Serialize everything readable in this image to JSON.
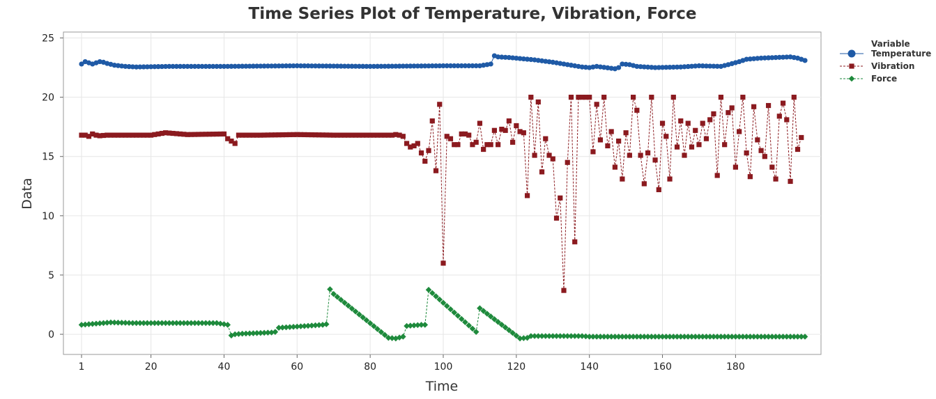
{
  "chart_data": {
    "type": "line",
    "title": "Time Series Plot of Temperature, Vibration, Force",
    "xlabel": "Time",
    "ylabel": "Data",
    "xlim": [
      1,
      199
    ],
    "ylim": [
      -1.7,
      25.5
    ],
    "xticks": [
      1,
      20,
      40,
      60,
      80,
      100,
      120,
      140,
      160,
      180
    ],
    "yticks": [
      0,
      5,
      10,
      15,
      20,
      25
    ],
    "grid": true,
    "legend": {
      "title": "Variable",
      "position": "top-right"
    },
    "series": [
      {
        "name": "Temperature",
        "color": "#1f5aa6",
        "marker": "circle",
        "line": "solid",
        "anchors": [
          [
            1,
            22.8
          ],
          [
            2,
            23.0
          ],
          [
            3,
            22.9
          ],
          [
            4,
            22.8
          ],
          [
            5,
            22.9
          ],
          [
            6,
            23.0
          ],
          [
            7,
            22.95
          ],
          [
            8,
            22.85
          ],
          [
            10,
            22.7
          ],
          [
            13,
            22.6
          ],
          [
            16,
            22.55
          ],
          [
            25,
            22.6
          ],
          [
            40,
            22.6
          ],
          [
            60,
            22.65
          ],
          [
            80,
            22.6
          ],
          [
            100,
            22.65
          ],
          [
            110,
            22.65
          ],
          [
            112,
            22.75
          ],
          [
            113,
            22.8
          ],
          [
            114,
            23.5
          ],
          [
            115,
            23.4
          ],
          [
            118,
            23.35
          ],
          [
            125,
            23.15
          ],
          [
            130,
            22.95
          ],
          [
            135,
            22.7
          ],
          [
            138,
            22.55
          ],
          [
            140,
            22.5
          ],
          [
            142,
            22.6
          ],
          [
            147,
            22.4
          ],
          [
            148,
            22.5
          ],
          [
            149,
            22.8
          ],
          [
            151,
            22.75
          ],
          [
            153,
            22.6
          ],
          [
            158,
            22.5
          ],
          [
            165,
            22.55
          ],
          [
            170,
            22.65
          ],
          [
            176,
            22.6
          ],
          [
            178,
            22.75
          ],
          [
            181,
            23.0
          ],
          [
            183,
            23.2
          ],
          [
            187,
            23.3
          ],
          [
            195,
            23.4
          ],
          [
            197,
            23.3
          ],
          [
            199,
            23.1
          ]
        ]
      },
      {
        "name": "Vibration",
        "color": "#8b1a1f",
        "marker": "square",
        "line": "dashed",
        "anchors": [
          [
            1,
            16.8
          ],
          [
            2,
            16.8
          ],
          [
            3,
            16.7
          ],
          [
            4,
            16.9
          ],
          [
            5,
            16.8
          ],
          [
            6,
            16.75
          ],
          [
            8,
            16.8
          ],
          [
            10,
            16.8
          ],
          [
            20,
            16.8
          ],
          [
            24,
            17.0
          ],
          [
            30,
            16.85
          ],
          [
            40,
            16.9
          ],
          [
            41,
            16.5
          ],
          [
            42,
            16.3
          ],
          [
            43,
            16.1
          ],
          [
            44,
            16.8
          ],
          [
            50,
            16.8
          ],
          [
            60,
            16.85
          ],
          [
            70,
            16.8
          ],
          [
            80,
            16.8
          ],
          [
            86,
            16.8
          ],
          [
            87,
            16.85
          ],
          [
            88,
            16.8
          ],
          [
            89,
            16.7
          ],
          [
            90,
            16.1
          ],
          [
            91,
            15.8
          ],
          [
            92,
            15.9
          ],
          [
            93,
            16.1
          ],
          [
            94,
            15.3
          ],
          [
            95,
            14.6
          ],
          [
            96,
            15.5
          ],
          [
            97,
            18.0
          ],
          [
            98,
            13.8
          ],
          [
            99,
            19.4
          ],
          [
            100,
            6.0
          ],
          [
            101,
            16.7
          ],
          [
            102,
            16.5
          ],
          [
            103,
            16.0
          ],
          [
            104,
            16.0
          ],
          [
            105,
            16.9
          ],
          [
            106,
            16.9
          ],
          [
            107,
            16.8
          ],
          [
            108,
            16.0
          ],
          [
            109,
            16.2
          ],
          [
            110,
            17.8
          ],
          [
            111,
            15.6
          ],
          [
            112,
            16.0
          ],
          [
            113,
            16.0
          ],
          [
            114,
            17.2
          ],
          [
            115,
            16.0
          ],
          [
            116,
            17.3
          ],
          [
            117,
            17.2
          ],
          [
            118,
            18.0
          ],
          [
            119,
            16.2
          ],
          [
            120,
            17.6
          ],
          [
            121,
            17.1
          ],
          [
            122,
            17.0
          ],
          [
            123,
            11.7
          ],
          [
            124,
            20.0
          ],
          [
            125,
            15.1
          ],
          [
            126,
            19.6
          ],
          [
            127,
            13.7
          ],
          [
            128,
            16.5
          ],
          [
            129,
            15.1
          ],
          [
            130,
            14.8
          ],
          [
            131,
            9.8
          ],
          [
            132,
            11.5
          ],
          [
            133,
            3.7
          ],
          [
            134,
            14.5
          ],
          [
            135,
            20.0
          ],
          [
            136,
            7.8
          ],
          [
            137,
            20.0
          ],
          [
            138,
            20.0
          ],
          [
            139,
            20.0
          ],
          [
            140,
            20.0
          ],
          [
            141,
            15.4
          ],
          [
            142,
            19.4
          ],
          [
            143,
            16.4
          ],
          [
            144,
            20.0
          ],
          [
            145,
            15.9
          ],
          [
            146,
            17.1
          ],
          [
            147,
            14.1
          ],
          [
            148,
            16.3
          ],
          [
            149,
            13.1
          ],
          [
            150,
            17.0
          ],
          [
            151,
            15.1
          ],
          [
            152,
            20.0
          ],
          [
            153,
            18.9
          ],
          [
            154,
            15.1
          ],
          [
            155,
            12.7
          ],
          [
            156,
            15.3
          ],
          [
            157,
            20.0
          ],
          [
            158,
            14.7
          ],
          [
            159,
            12.2
          ],
          [
            160,
            17.8
          ],
          [
            161,
            16.7
          ],
          [
            162,
            13.1
          ],
          [
            163,
            20.0
          ],
          [
            164,
            15.8
          ],
          [
            165,
            18.0
          ],
          [
            166,
            15.1
          ],
          [
            167,
            17.8
          ],
          [
            168,
            15.8
          ],
          [
            169,
            17.2
          ],
          [
            170,
            16.0
          ],
          [
            171,
            17.8
          ],
          [
            172,
            16.5
          ],
          [
            173,
            18.1
          ],
          [
            174,
            18.6
          ],
          [
            175,
            13.4
          ],
          [
            176,
            20.0
          ],
          [
            177,
            16.0
          ],
          [
            178,
            18.7
          ],
          [
            179,
            19.1
          ],
          [
            180,
            14.1
          ],
          [
            181,
            17.1
          ],
          [
            182,
            20.0
          ],
          [
            183,
            15.3
          ],
          [
            184,
            13.3
          ],
          [
            185,
            19.2
          ],
          [
            186,
            16.4
          ],
          [
            187,
            15.5
          ],
          [
            188,
            15.0
          ],
          [
            189,
            19.3
          ],
          [
            190,
            14.1
          ],
          [
            191,
            13.1
          ],
          [
            192,
            18.4
          ],
          [
            193,
            19.5
          ],
          [
            194,
            18.1
          ],
          [
            195,
            12.9
          ],
          [
            196,
            20.0
          ],
          [
            197,
            15.6
          ],
          [
            198,
            16.6
          ]
        ]
      },
      {
        "name": "Force",
        "color": "#1e8a3c",
        "marker": "diamond",
        "line": "dashed",
        "anchors": [
          [
            1,
            0.8
          ],
          [
            7,
            0.95
          ],
          [
            9,
            1.0
          ],
          [
            15,
            0.95
          ],
          [
            38,
            0.95
          ],
          [
            40,
            0.85
          ],
          [
            41,
            0.8
          ],
          [
            42,
            -0.1
          ],
          [
            43,
            0.0
          ],
          [
            45,
            0.05
          ],
          [
            53,
            0.15
          ],
          [
            54,
            0.2
          ],
          [
            55,
            0.55
          ],
          [
            60,
            0.65
          ],
          [
            67,
            0.8
          ],
          [
            68,
            0.85
          ],
          [
            69,
            3.8
          ],
          [
            70,
            3.4
          ],
          [
            85,
            -0.3
          ],
          [
            87,
            -0.35
          ],
          [
            89,
            -0.2
          ],
          [
            90,
            0.7
          ],
          [
            94,
            0.8
          ],
          [
            95,
            0.8
          ],
          [
            96,
            3.75
          ],
          [
            109,
            0.2
          ],
          [
            110,
            2.2
          ],
          [
            121,
            -0.35
          ],
          [
            123,
            -0.3
          ],
          [
            124,
            -0.15
          ],
          [
            138,
            -0.15
          ],
          [
            140,
            -0.2
          ],
          [
            199,
            -0.2
          ]
        ]
      }
    ]
  }
}
